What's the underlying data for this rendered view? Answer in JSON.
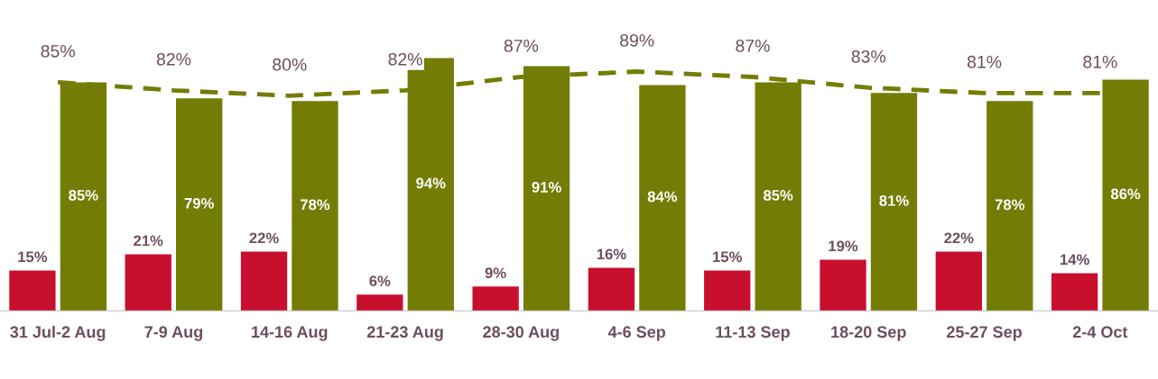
{
  "chart_data": {
    "type": "bar",
    "categories": [
      "31 Jul-2 Aug",
      "7-9 Aug",
      "14-16 Aug",
      "21-23 Aug",
      "28-30 Aug",
      "4-6 Sep",
      "11-13 Sep",
      "18-20 Sep",
      "25-27 Sep",
      "2-4 Oct"
    ],
    "series": [
      {
        "color": "#c8102e",
        "values": [
          15,
          21,
          22,
          6,
          9,
          16,
          15,
          19,
          22,
          14
        ],
        "value_labels": [
          "15%",
          "21%",
          "22%",
          "6%",
          "9%",
          "16%",
          "15%",
          "19%",
          "22%",
          "14%"
        ]
      },
      {
        "color": "#737d05",
        "values": [
          85,
          79,
          78,
          94,
          91,
          84,
          85,
          81,
          78,
          86
        ],
        "value_labels": [
          "85%",
          "79%",
          "78%",
          "94%",
          "91%",
          "84%",
          "85%",
          "81%",
          "78%",
          "86%"
        ]
      },
      {
        "type": "line",
        "color": "#737d05",
        "line_style": "dashed",
        "values": [
          85,
          82,
          80,
          82,
          87,
          89,
          87,
          83,
          81,
          81
        ],
        "value_labels": [
          "85%",
          "82%",
          "80%",
          "82%",
          "87%",
          "89%",
          "87%",
          "83%",
          "81%",
          "81%"
        ]
      }
    ],
    "tick_labels": "x",
    "grid": false,
    "legend": false
  }
}
